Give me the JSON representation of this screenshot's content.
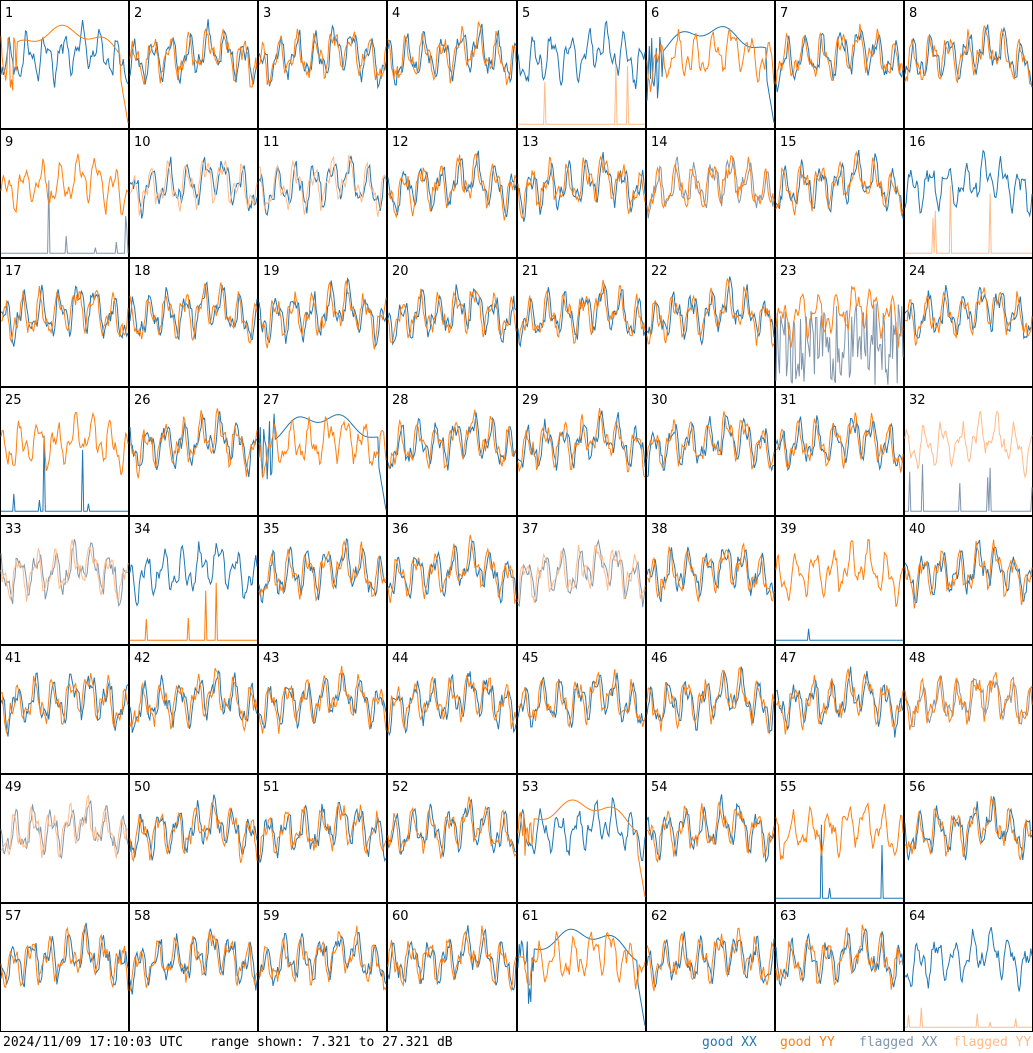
{
  "footer": {
    "timestamp": "2024/11/09 17:10:03 UTC",
    "range_text": "range shown: 7.321 to 27.321 dB"
  },
  "colors": {
    "good_xx": "#1f77b4",
    "good_yy": "#ff7f0e",
    "flagged_xx": "#7f96ad",
    "flagged_yy": "#ffbb88"
  },
  "chart_data": {
    "type": "line",
    "layout": "8x8 small multiples",
    "ylim": [
      7.321,
      27.321
    ],
    "ylabel": "",
    "legend": [
      {
        "key": "good_xx",
        "label": "good XX"
      },
      {
        "key": "good_yy",
        "label": "good YY"
      },
      {
        "key": "flagged_xx",
        "label": "flagged XX"
      },
      {
        "key": "flagged_yy",
        "label": "flagged YY"
      }
    ],
    "legend_position": "bottom-right",
    "panels": [
      {
        "label": "1",
        "xx": "good",
        "yy": "good",
        "xx_mode": "normal",
        "yy_mode": "smooth"
      },
      {
        "label": "2",
        "xx": "good",
        "yy": "good",
        "xx_mode": "normal",
        "yy_mode": "normal"
      },
      {
        "label": "3",
        "xx": "good",
        "yy": "good",
        "xx_mode": "normal",
        "yy_mode": "normal"
      },
      {
        "label": "4",
        "xx": "good",
        "yy": "good",
        "xx_mode": "normal",
        "yy_mode": "normal"
      },
      {
        "label": "5",
        "xx": "good",
        "yy": "flagged",
        "xx_mode": "normal",
        "yy_mode": "spiky"
      },
      {
        "label": "6",
        "xx": "good",
        "yy": "good",
        "xx_mode": "smooth",
        "yy_mode": "normal"
      },
      {
        "label": "7",
        "xx": "good",
        "yy": "good",
        "xx_mode": "normal",
        "yy_mode": "normal"
      },
      {
        "label": "8",
        "xx": "good",
        "yy": "good",
        "xx_mode": "normal",
        "yy_mode": "normal"
      },
      {
        "label": "9",
        "xx": "flagged",
        "yy": "good",
        "xx_mode": "spiky",
        "yy_mode": "normal"
      },
      {
        "label": "10",
        "xx": "good",
        "yy": "flagged",
        "xx_mode": "normal",
        "yy_mode": "normal"
      },
      {
        "label": "11",
        "xx": "good",
        "yy": "flagged",
        "xx_mode": "normal",
        "yy_mode": "normal"
      },
      {
        "label": "12",
        "xx": "good",
        "yy": "good",
        "xx_mode": "normal",
        "yy_mode": "normal"
      },
      {
        "label": "13",
        "xx": "good",
        "yy": "good",
        "xx_mode": "normal",
        "yy_mode": "normal"
      },
      {
        "label": "14",
        "xx": "flagged",
        "yy": "good",
        "xx_mode": "normal",
        "yy_mode": "normal"
      },
      {
        "label": "15",
        "xx": "good",
        "yy": "good",
        "xx_mode": "normal",
        "yy_mode": "normal"
      },
      {
        "label": "16",
        "xx": "good",
        "yy": "flagged",
        "xx_mode": "normal",
        "yy_mode": "spiky"
      },
      {
        "label": "17",
        "xx": "good",
        "yy": "good",
        "xx_mode": "normal",
        "yy_mode": "normal"
      },
      {
        "label": "18",
        "xx": "good",
        "yy": "good",
        "xx_mode": "normal",
        "yy_mode": "normal"
      },
      {
        "label": "19",
        "xx": "good",
        "yy": "good",
        "xx_mode": "normal",
        "yy_mode": "normal"
      },
      {
        "label": "20",
        "xx": "good",
        "yy": "good",
        "xx_mode": "normal",
        "yy_mode": "normal"
      },
      {
        "label": "21",
        "xx": "good",
        "yy": "good",
        "xx_mode": "normal",
        "yy_mode": "normal"
      },
      {
        "label": "22",
        "xx": "good",
        "yy": "good",
        "xx_mode": "normal",
        "yy_mode": "normal"
      },
      {
        "label": "23",
        "xx": "flagged",
        "yy": "good",
        "xx_mode": "noisy",
        "yy_mode": "normal"
      },
      {
        "label": "24",
        "xx": "good",
        "yy": "good",
        "xx_mode": "normal",
        "yy_mode": "normal"
      },
      {
        "label": "25",
        "xx": "good",
        "yy": "good",
        "xx_mode": "spiky",
        "yy_mode": "normal"
      },
      {
        "label": "26",
        "xx": "good",
        "yy": "good",
        "xx_mode": "normal",
        "yy_mode": "normal"
      },
      {
        "label": "27",
        "xx": "good",
        "yy": "good",
        "xx_mode": "smooth",
        "yy_mode": "normal"
      },
      {
        "label": "28",
        "xx": "good",
        "yy": "good",
        "xx_mode": "normal",
        "yy_mode": "normal"
      },
      {
        "label": "29",
        "xx": "good",
        "yy": "good",
        "xx_mode": "normal",
        "yy_mode": "normal"
      },
      {
        "label": "30",
        "xx": "good",
        "yy": "good",
        "xx_mode": "normal",
        "yy_mode": "normal"
      },
      {
        "label": "31",
        "xx": "good",
        "yy": "good",
        "xx_mode": "normal",
        "yy_mode": "normal"
      },
      {
        "label": "32",
        "xx": "flagged",
        "yy": "flagged",
        "xx_mode": "spiky",
        "yy_mode": "normal"
      },
      {
        "label": "33",
        "xx": "flagged",
        "yy": "flagged",
        "xx_mode": "normal",
        "yy_mode": "normal"
      },
      {
        "label": "34",
        "xx": "good",
        "yy": "good",
        "xx_mode": "normal",
        "yy_mode": "spiky"
      },
      {
        "label": "35",
        "xx": "good",
        "yy": "good",
        "xx_mode": "normal",
        "yy_mode": "normal"
      },
      {
        "label": "36",
        "xx": "good",
        "yy": "good",
        "xx_mode": "normal",
        "yy_mode": "normal"
      },
      {
        "label": "37",
        "xx": "flagged",
        "yy": "flagged",
        "xx_mode": "normal",
        "yy_mode": "normal"
      },
      {
        "label": "38",
        "xx": "good",
        "yy": "good",
        "xx_mode": "normal",
        "yy_mode": "normal"
      },
      {
        "label": "39",
        "xx": "good",
        "yy": "good",
        "xx_mode": "spiky",
        "yy_mode": "normal"
      },
      {
        "label": "40",
        "xx": "good",
        "yy": "good",
        "xx_mode": "normal",
        "yy_mode": "normal"
      },
      {
        "label": "41",
        "xx": "good",
        "yy": "good",
        "xx_mode": "normal",
        "yy_mode": "normal"
      },
      {
        "label": "42",
        "xx": "good",
        "yy": "good",
        "xx_mode": "normal",
        "yy_mode": "normal"
      },
      {
        "label": "43",
        "xx": "good",
        "yy": "good",
        "xx_mode": "normal",
        "yy_mode": "normal"
      },
      {
        "label": "44",
        "xx": "good",
        "yy": "good",
        "xx_mode": "normal",
        "yy_mode": "normal"
      },
      {
        "label": "45",
        "xx": "good",
        "yy": "good",
        "xx_mode": "normal",
        "yy_mode": "normal"
      },
      {
        "label": "46",
        "xx": "good",
        "yy": "good",
        "xx_mode": "normal",
        "yy_mode": "normal"
      },
      {
        "label": "47",
        "xx": "good",
        "yy": "good",
        "xx_mode": "normal",
        "yy_mode": "normal"
      },
      {
        "label": "48",
        "xx": "flagged",
        "yy": "good",
        "xx_mode": "normal",
        "yy_mode": "normal"
      },
      {
        "label": "49",
        "xx": "flagged",
        "yy": "flagged",
        "xx_mode": "normal",
        "yy_mode": "normal"
      },
      {
        "label": "50",
        "xx": "good",
        "yy": "good",
        "xx_mode": "normal",
        "yy_mode": "normal"
      },
      {
        "label": "51",
        "xx": "good",
        "yy": "good",
        "xx_mode": "normal",
        "yy_mode": "normal"
      },
      {
        "label": "52",
        "xx": "good",
        "yy": "good",
        "xx_mode": "normal",
        "yy_mode": "normal"
      },
      {
        "label": "53",
        "xx": "good",
        "yy": "good",
        "xx_mode": "normal",
        "yy_mode": "smooth"
      },
      {
        "label": "54",
        "xx": "good",
        "yy": "good",
        "xx_mode": "normal",
        "yy_mode": "normal"
      },
      {
        "label": "55",
        "xx": "good",
        "yy": "good",
        "xx_mode": "spiky",
        "yy_mode": "normal"
      },
      {
        "label": "56",
        "xx": "good",
        "yy": "good",
        "xx_mode": "normal",
        "yy_mode": "normal"
      },
      {
        "label": "57",
        "xx": "good",
        "yy": "good",
        "xx_mode": "normal",
        "yy_mode": "normal"
      },
      {
        "label": "58",
        "xx": "good",
        "yy": "good",
        "xx_mode": "normal",
        "yy_mode": "normal"
      },
      {
        "label": "59",
        "xx": "good",
        "yy": "good",
        "xx_mode": "normal",
        "yy_mode": "normal"
      },
      {
        "label": "60",
        "xx": "good",
        "yy": "good",
        "xx_mode": "normal",
        "yy_mode": "normal"
      },
      {
        "label": "61",
        "xx": "good",
        "yy": "good",
        "xx_mode": "smooth",
        "yy_mode": "normal"
      },
      {
        "label": "62",
        "xx": "good",
        "yy": "good",
        "xx_mode": "normal",
        "yy_mode": "normal"
      },
      {
        "label": "63",
        "xx": "good",
        "yy": "good",
        "xx_mode": "normal",
        "yy_mode": "normal"
      },
      {
        "label": "64",
        "xx": "good",
        "yy": "flagged",
        "xx_mode": "normal",
        "yy_mode": "spiky"
      }
    ]
  }
}
